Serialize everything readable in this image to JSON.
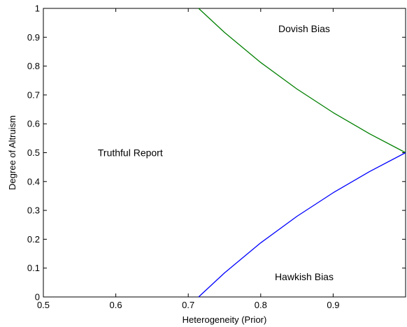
{
  "chart_data": {
    "type": "line",
    "xlabel": "Heterogeneity (Prior)",
    "ylabel": "Degree of Altruism",
    "xlim": [
      0.5,
      1.0
    ],
    "ylim": [
      0,
      1
    ],
    "x_ticks": [
      "0.5",
      "0.6",
      "0.7",
      "0.8",
      "0.9"
    ],
    "y_ticks": [
      "0",
      "0.1",
      "0.2",
      "0.3",
      "0.4",
      "0.5",
      "0.6",
      "0.7",
      "0.8",
      "0.9",
      "1"
    ],
    "grid": false,
    "series": [
      {
        "color": "#008000",
        "points": [
          [
            0.7143,
            1.0
          ],
          [
            0.75,
            0.9167
          ],
          [
            0.8,
            0.8125
          ],
          [
            0.85,
            0.7206
          ],
          [
            0.9,
            0.6389
          ],
          [
            0.95,
            0.5658
          ],
          [
            1.0,
            0.5
          ]
        ]
      },
      {
        "color": "#0000ff",
        "points": [
          [
            0.7143,
            0.0
          ],
          [
            0.75,
            0.0833
          ],
          [
            0.8,
            0.1875
          ],
          [
            0.85,
            0.2794
          ],
          [
            0.9,
            0.3611
          ],
          [
            0.95,
            0.4342
          ],
          [
            1.0,
            0.5
          ]
        ]
      }
    ],
    "annotations": [
      {
        "text": "Dovish Bias",
        "x": 0.86,
        "y": 0.93
      },
      {
        "text": "Truthful Report",
        "x": 0.62,
        "y": 0.5
      },
      {
        "text": "Hawkish Bias",
        "x": 0.86,
        "y": 0.07
      }
    ]
  }
}
